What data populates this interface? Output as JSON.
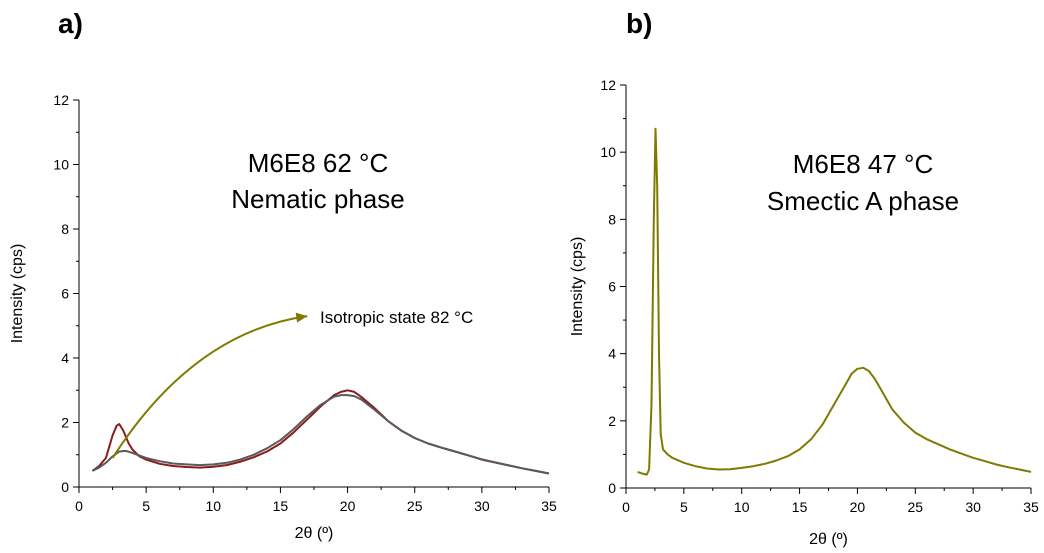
{
  "panels": {
    "a": {
      "label": "a)"
    },
    "b": {
      "label": "b)"
    }
  },
  "colors": {
    "red": "#8b1a1a",
    "gray": "#5a5a5a",
    "olive": "#7f7a00",
    "axis": "#000000"
  },
  "chart_data": [
    {
      "type": "line",
      "panel": "a",
      "xlabel": "2θ (º)",
      "ylabel": "Intensity (cps)",
      "xlim": [
        0,
        35
      ],
      "ylim": [
        0,
        12
      ],
      "xticks": [
        0,
        5,
        10,
        15,
        20,
        25,
        30,
        35
      ],
      "yticks": [
        0,
        2,
        4,
        6,
        8,
        10,
        12
      ],
      "annotations": [
        "M6E8 62 °C",
        "Nematic phase",
        "Isotropic state 82 °C"
      ],
      "series": [
        {
          "color": "#8b1a1a",
          "x": [
            1.0,
            1.5,
            2.0,
            2.5,
            2.8,
            3.0,
            3.3,
            3.7,
            4.0,
            4.5,
            5,
            6,
            7,
            8,
            9,
            10,
            11,
            12,
            13,
            14,
            15,
            16,
            17,
            18,
            19,
            19.5,
            20,
            20.5,
            21,
            22,
            23,
            24,
            25,
            26,
            27,
            28,
            29,
            30,
            31,
            32,
            33,
            34,
            35
          ],
          "y": [
            0.5,
            0.65,
            0.9,
            1.6,
            1.9,
            1.95,
            1.75,
            1.35,
            1.15,
            0.95,
            0.85,
            0.72,
            0.65,
            0.62,
            0.6,
            0.63,
            0.68,
            0.78,
            0.92,
            1.1,
            1.35,
            1.7,
            2.1,
            2.5,
            2.85,
            2.95,
            3.0,
            2.95,
            2.8,
            2.45,
            2.05,
            1.75,
            1.52,
            1.35,
            1.22,
            1.1,
            0.98,
            0.85,
            0.76,
            0.67,
            0.58,
            0.5,
            0.42
          ]
        },
        {
          "color": "#5a5a5a",
          "x": [
            1.0,
            1.5,
            2.0,
            2.5,
            3.0,
            3.5,
            4.0,
            5,
            6,
            7,
            8,
            9,
            10,
            11,
            12,
            13,
            14,
            15,
            16,
            17,
            18,
            19,
            19.5,
            20,
            20.5,
            21,
            22,
            23,
            24,
            25,
            26,
            27,
            28,
            29,
            30,
            31,
            32,
            33,
            34,
            35
          ],
          "y": [
            0.5,
            0.6,
            0.75,
            0.95,
            1.1,
            1.12,
            1.05,
            0.9,
            0.8,
            0.73,
            0.7,
            0.68,
            0.7,
            0.75,
            0.85,
            1.0,
            1.2,
            1.45,
            1.8,
            2.2,
            2.55,
            2.8,
            2.85,
            2.85,
            2.82,
            2.72,
            2.4,
            2.05,
            1.75,
            1.52,
            1.35,
            1.22,
            1.1,
            0.98,
            0.86,
            0.76,
            0.67,
            0.58,
            0.5,
            0.42
          ]
        }
      ]
    },
    {
      "type": "line",
      "panel": "b",
      "xlabel": "2θ (º)",
      "ylabel": "Intensity (cps)",
      "xlim": [
        0,
        35
      ],
      "ylim": [
        0,
        12
      ],
      "xticks": [
        0,
        5,
        10,
        15,
        20,
        25,
        30,
        35
      ],
      "yticks": [
        0,
        2,
        4,
        6,
        8,
        10,
        12
      ],
      "annotations": [
        "M6E8 47 °C",
        "Smectic A phase"
      ],
      "series": [
        {
          "color": "#7f7a00",
          "x": [
            1.0,
            1.5,
            1.8,
            2.0,
            2.2,
            2.4,
            2.55,
            2.7,
            2.85,
            3.0,
            3.2,
            3.6,
            4,
            5,
            6,
            7,
            8,
            9,
            10,
            11,
            12,
            13,
            14,
            15,
            16,
            17,
            18,
            19,
            19.5,
            20,
            20.5,
            21,
            21.5,
            22,
            23,
            24,
            25,
            26,
            27,
            28,
            29,
            30,
            31,
            32,
            33,
            34,
            35
          ],
          "y": [
            0.48,
            0.42,
            0.4,
            0.55,
            2.5,
            8.0,
            10.7,
            9.0,
            4.0,
            1.6,
            1.15,
            1.0,
            0.9,
            0.75,
            0.65,
            0.58,
            0.55,
            0.56,
            0.6,
            0.65,
            0.72,
            0.82,
            0.95,
            1.15,
            1.45,
            1.9,
            2.5,
            3.1,
            3.4,
            3.55,
            3.58,
            3.48,
            3.25,
            2.95,
            2.35,
            1.95,
            1.65,
            1.45,
            1.3,
            1.15,
            1.02,
            0.9,
            0.8,
            0.7,
            0.62,
            0.55,
            0.48
          ]
        }
      ]
    }
  ]
}
